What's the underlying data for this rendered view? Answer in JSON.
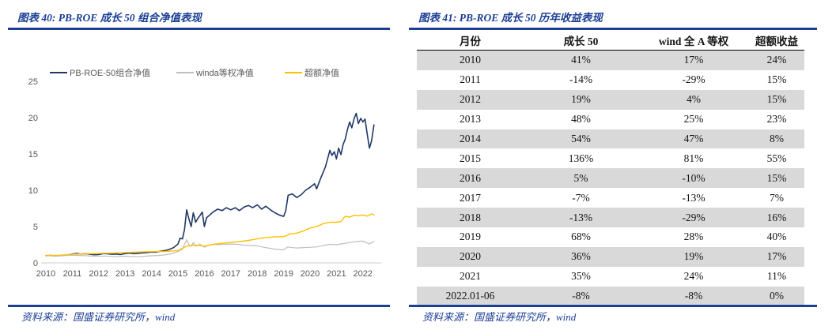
{
  "left_panel": {
    "title": "图表 40: PB-ROE 成长 50 组合净值表现",
    "source": "资料来源：国盛证券研究所，wind"
  },
  "right_panel": {
    "title": "图表 41: PB-ROE 成长 50 历年收益表现",
    "source": "资料来源：国盛证券研究所，wind",
    "table": {
      "headers": [
        "月份",
        "成长 50",
        "wind 全 A 等权",
        "超额收益"
      ],
      "rows": [
        [
          "2010",
          "41%",
          "17%",
          "24%"
        ],
        [
          "2011",
          "-14%",
          "-29%",
          "15%"
        ],
        [
          "2012",
          "19%",
          "4%",
          "15%"
        ],
        [
          "2013",
          "48%",
          "25%",
          "23%"
        ],
        [
          "2014",
          "54%",
          "47%",
          "8%"
        ],
        [
          "2015",
          "136%",
          "81%",
          "55%"
        ],
        [
          "2016",
          "5%",
          "-10%",
          "15%"
        ],
        [
          "2017",
          "-7%",
          "-13%",
          "7%"
        ],
        [
          "2018",
          "-13%",
          "-29%",
          "16%"
        ],
        [
          "2019",
          "68%",
          "28%",
          "40%"
        ],
        [
          "2020",
          "36%",
          "19%",
          "17%"
        ],
        [
          "2021",
          "35%",
          "24%",
          "11%"
        ],
        [
          "2022.01-06",
          "-8%",
          "-8%",
          "0%"
        ]
      ]
    }
  },
  "chart_data": {
    "type": "line",
    "title": "PB-ROE 成长 50 组合净值表现",
    "xlabel": "",
    "ylabel": "",
    "ylim": [
      0,
      25
    ],
    "grid": false,
    "legend_position": "top",
    "yticks": [
      0,
      5,
      10,
      15,
      20,
      25
    ],
    "xticks": [
      2010,
      2011,
      2012,
      2013,
      2014,
      2015,
      2016,
      2017,
      2018,
      2019,
      2020,
      2021,
      2022
    ],
    "series": [
      {
        "name": "PB-ROE-50组合净值",
        "color": "#1f3864",
        "width": 1.6,
        "points": [
          [
            2010.0,
            1.0
          ],
          [
            2010.17,
            1.02
          ],
          [
            2010.33,
            0.97
          ],
          [
            2010.5,
            1.0
          ],
          [
            2010.67,
            1.05
          ],
          [
            2010.83,
            1.1
          ],
          [
            2011.0,
            1.22
          ],
          [
            2011.17,
            1.3
          ],
          [
            2011.33,
            1.22
          ],
          [
            2011.5,
            1.27
          ],
          [
            2011.67,
            1.18
          ],
          [
            2011.83,
            1.12
          ],
          [
            2012.0,
            1.14
          ],
          [
            2012.17,
            1.28
          ],
          [
            2012.33,
            1.25
          ],
          [
            2012.5,
            1.18
          ],
          [
            2012.67,
            1.22
          ],
          [
            2012.83,
            1.15
          ],
          [
            2013.0,
            1.28
          ],
          [
            2013.17,
            1.35
          ],
          [
            2013.33,
            1.27
          ],
          [
            2013.5,
            1.33
          ],
          [
            2013.67,
            1.38
          ],
          [
            2013.83,
            1.42
          ],
          [
            2014.0,
            1.5
          ],
          [
            2014.17,
            1.48
          ],
          [
            2014.33,
            1.6
          ],
          [
            2014.5,
            1.7
          ],
          [
            2014.67,
            1.85
          ],
          [
            2014.83,
            2.1
          ],
          [
            2015.0,
            2.6
          ],
          [
            2015.08,
            3.4
          ],
          [
            2015.17,
            3.3
          ],
          [
            2015.25,
            4.6
          ],
          [
            2015.33,
            7.3
          ],
          [
            2015.42,
            6.0
          ],
          [
            2015.5,
            5.0
          ],
          [
            2015.58,
            6.9
          ],
          [
            2015.67,
            5.6
          ],
          [
            2015.75,
            6.1
          ],
          [
            2015.83,
            6.5
          ],
          [
            2015.92,
            7.0
          ],
          [
            2016.0,
            5.0
          ],
          [
            2016.08,
            6.2
          ],
          [
            2016.17,
            6.5
          ],
          [
            2016.33,
            7.0
          ],
          [
            2016.5,
            7.4
          ],
          [
            2016.67,
            7.2
          ],
          [
            2016.83,
            7.6
          ],
          [
            2017.0,
            7.3
          ],
          [
            2017.17,
            7.6
          ],
          [
            2017.33,
            7.2
          ],
          [
            2017.5,
            7.7
          ],
          [
            2017.67,
            7.9
          ],
          [
            2017.83,
            7.6
          ],
          [
            2018.0,
            8.0
          ],
          [
            2018.17,
            7.4
          ],
          [
            2018.33,
            7.8
          ],
          [
            2018.5,
            7.3
          ],
          [
            2018.67,
            6.9
          ],
          [
            2018.83,
            6.6
          ],
          [
            2019.0,
            6.4
          ],
          [
            2019.08,
            7.2
          ],
          [
            2019.17,
            9.3
          ],
          [
            2019.33,
            9.5
          ],
          [
            2019.5,
            9.0
          ],
          [
            2019.67,
            9.4
          ],
          [
            2019.83,
            10.0
          ],
          [
            2020.0,
            10.4
          ],
          [
            2020.17,
            10.9
          ],
          [
            2020.25,
            10.2
          ],
          [
            2020.42,
            11.8
          ],
          [
            2020.58,
            13.2
          ],
          [
            2020.75,
            15.5
          ],
          [
            2020.83,
            14.8
          ],
          [
            2020.92,
            15.3
          ],
          [
            2021.0,
            14.3
          ],
          [
            2021.08,
            15.8
          ],
          [
            2021.17,
            14.9
          ],
          [
            2021.25,
            16.3
          ],
          [
            2021.33,
            17.0
          ],
          [
            2021.42,
            18.4
          ],
          [
            2021.5,
            19.4
          ],
          [
            2021.58,
            18.6
          ],
          [
            2021.67,
            19.9
          ],
          [
            2021.75,
            20.6
          ],
          [
            2021.83,
            19.2
          ],
          [
            2021.92,
            19.9
          ],
          [
            2022.0,
            19.4
          ],
          [
            2022.08,
            19.8
          ],
          [
            2022.17,
            17.6
          ],
          [
            2022.25,
            15.8
          ],
          [
            2022.33,
            16.8
          ],
          [
            2022.42,
            19.0
          ]
        ]
      },
      {
        "name": "winda等权净值",
        "color": "#bfbfbf",
        "width": 1.2,
        "points": [
          [
            2010.0,
            1.0
          ],
          [
            2010.25,
            0.96
          ],
          [
            2010.5,
            0.93
          ],
          [
            2010.75,
            1.02
          ],
          [
            2011.0,
            1.05
          ],
          [
            2011.25,
            1.02
          ],
          [
            2011.5,
            1.0
          ],
          [
            2011.75,
            0.92
          ],
          [
            2012.0,
            0.9
          ],
          [
            2012.25,
            0.95
          ],
          [
            2012.5,
            0.87
          ],
          [
            2012.75,
            0.88
          ],
          [
            2013.0,
            0.92
          ],
          [
            2013.25,
            0.88
          ],
          [
            2013.5,
            0.85
          ],
          [
            2013.75,
            0.92
          ],
          [
            2014.0,
            0.98
          ],
          [
            2014.25,
            1.02
          ],
          [
            2014.5,
            1.1
          ],
          [
            2014.75,
            1.25
          ],
          [
            2015.0,
            1.55
          ],
          [
            2015.17,
            1.9
          ],
          [
            2015.33,
            3.2
          ],
          [
            2015.42,
            2.5
          ],
          [
            2015.5,
            2.3
          ],
          [
            2015.58,
            2.8
          ],
          [
            2015.67,
            2.3
          ],
          [
            2015.83,
            2.6
          ],
          [
            2016.0,
            2.15
          ],
          [
            2016.17,
            2.45
          ],
          [
            2016.33,
            2.55
          ],
          [
            2016.5,
            2.5
          ],
          [
            2016.75,
            2.55
          ],
          [
            2017.0,
            2.6
          ],
          [
            2017.25,
            2.55
          ],
          [
            2017.5,
            2.45
          ],
          [
            2017.75,
            2.4
          ],
          [
            2018.0,
            2.35
          ],
          [
            2018.25,
            2.15
          ],
          [
            2018.5,
            2.0
          ],
          [
            2018.75,
            1.85
          ],
          [
            2019.0,
            1.8
          ],
          [
            2019.17,
            2.2
          ],
          [
            2019.33,
            2.1
          ],
          [
            2019.5,
            2.05
          ],
          [
            2019.75,
            2.1
          ],
          [
            2020.0,
            2.15
          ],
          [
            2020.25,
            2.2
          ],
          [
            2020.5,
            2.4
          ],
          [
            2020.75,
            2.55
          ],
          [
            2021.0,
            2.5
          ],
          [
            2021.25,
            2.65
          ],
          [
            2021.5,
            2.8
          ],
          [
            2021.75,
            2.95
          ],
          [
            2022.0,
            3.0
          ],
          [
            2022.17,
            2.75
          ],
          [
            2022.25,
            2.6
          ],
          [
            2022.42,
            3.0
          ]
        ]
      },
      {
        "name": "超额净值",
        "color": "#ffc000",
        "width": 1.4,
        "points": [
          [
            2010.0,
            1.0
          ],
          [
            2010.5,
            1.05
          ],
          [
            2011.0,
            1.18
          ],
          [
            2011.5,
            1.25
          ],
          [
            2012.0,
            1.3
          ],
          [
            2012.5,
            1.35
          ],
          [
            2013.0,
            1.42
          ],
          [
            2013.5,
            1.5
          ],
          [
            2014.0,
            1.55
          ],
          [
            2014.5,
            1.58
          ],
          [
            2014.83,
            1.65
          ],
          [
            2015.0,
            1.7
          ],
          [
            2015.33,
            2.3
          ],
          [
            2015.58,
            2.45
          ],
          [
            2015.83,
            2.4
          ],
          [
            2016.0,
            2.3
          ],
          [
            2016.33,
            2.55
          ],
          [
            2016.67,
            2.7
          ],
          [
            2017.0,
            2.8
          ],
          [
            2017.33,
            2.95
          ],
          [
            2017.67,
            3.1
          ],
          [
            2018.0,
            3.3
          ],
          [
            2018.33,
            3.5
          ],
          [
            2018.67,
            3.6
          ],
          [
            2019.0,
            3.6
          ],
          [
            2019.25,
            4.0
          ],
          [
            2019.5,
            4.1
          ],
          [
            2019.75,
            4.4
          ],
          [
            2020.0,
            4.8
          ],
          [
            2020.25,
            5.0
          ],
          [
            2020.5,
            5.4
          ],
          [
            2020.75,
            5.6
          ],
          [
            2021.0,
            5.6
          ],
          [
            2021.17,
            5.7
          ],
          [
            2021.33,
            6.4
          ],
          [
            2021.5,
            6.3
          ],
          [
            2021.67,
            6.55
          ],
          [
            2021.83,
            6.5
          ],
          [
            2022.0,
            6.6
          ],
          [
            2022.17,
            6.45
          ],
          [
            2022.33,
            6.75
          ],
          [
            2022.42,
            6.6
          ]
        ]
      }
    ]
  },
  "colors": {
    "accent_blue": "#1c3e94",
    "line_navy": "#1f3864",
    "line_gray": "#bfbfbf",
    "line_yellow": "#ffc000",
    "row_shade": "#d9d9d9",
    "tick_gray": "#595959"
  }
}
